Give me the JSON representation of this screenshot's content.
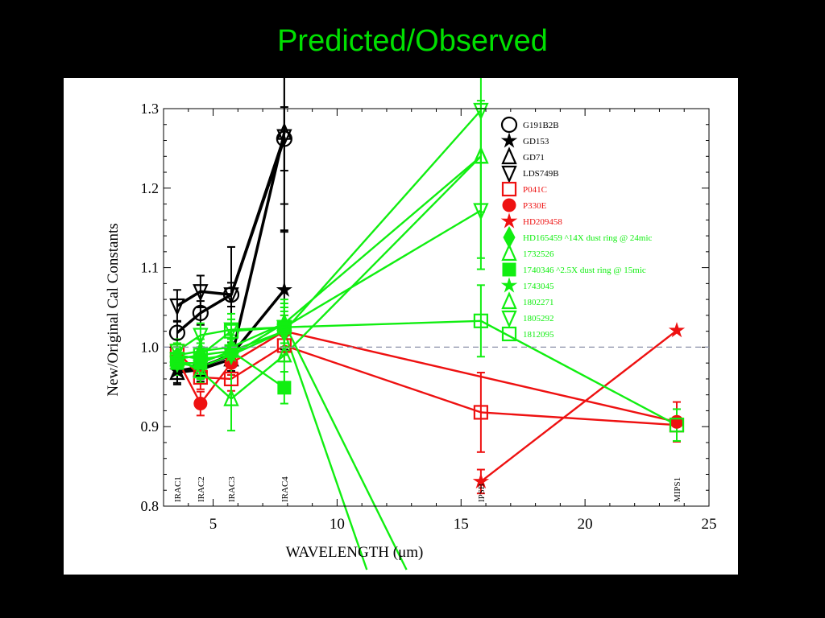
{
  "slide": {
    "title": "Predicted/Observed"
  },
  "colors": {
    "background": "#000000",
    "title": "#00e000",
    "plot_bg": "#ffffff",
    "black": "#000000",
    "red": "#ee1111",
    "green": "#11ee11",
    "reference_line": "#8a8fa8"
  },
  "chart_data": {
    "type": "line",
    "title": "",
    "xlabel": "WAVELENGTH (μm)",
    "ylabel": "New/Original Cal Constants",
    "xlim": [
      3,
      25
    ],
    "ylim": [
      0.8,
      1.3
    ],
    "x_ticks": [
      "5",
      "10",
      "15",
      "20",
      "25"
    ],
    "y_ticks": [
      "0.8",
      "0.9",
      "1.0",
      "1.1",
      "1.2",
      "1.3"
    ],
    "reference_line": 1.0,
    "band_labels": [
      {
        "label": "IRAC1",
        "x": 3.55
      },
      {
        "label": "IRAC2",
        "x": 4.49
      },
      {
        "label": "IRAC3",
        "x": 5.73
      },
      {
        "label": "IRAC4",
        "x": 7.87
      },
      {
        "label": "IPSB",
        "x": 15.8
      },
      {
        "label": "MIPS1",
        "x": 23.7
      }
    ],
    "legend_position": "top-right",
    "series": [
      {
        "name": "G191B2B",
        "color": "#000000",
        "marker": "circle-open",
        "thick": true,
        "points": [
          [
            3.55,
            1.018,
            0.015
          ],
          [
            4.49,
            1.043,
            0.015
          ],
          [
            5.73,
            1.066,
            0.015
          ],
          [
            7.87,
            1.262,
            0.04
          ]
        ]
      },
      {
        "name": "GD153",
        "color": "#000000",
        "marker": "star",
        "thick": true,
        "points": [
          [
            3.55,
            0.97,
            0.015
          ],
          [
            4.49,
            0.975,
            0.015
          ],
          [
            5.73,
            0.99,
            0.02
          ],
          [
            7.87,
            1.072,
            0.075
          ]
        ]
      },
      {
        "name": "GD71",
        "color": "#000000",
        "marker": "triangle-up-open",
        "thick": true,
        "points": [
          [
            3.55,
            0.968,
            0.015
          ],
          [
            4.49,
            0.972,
            0.015
          ],
          [
            5.73,
            0.985,
            0.02
          ],
          [
            7.87,
            1.27,
            0.09
          ]
        ]
      },
      {
        "name": "LDS749B",
        "color": "#000000",
        "marker": "triangle-down-open",
        "thick": true,
        "points": [
          [
            3.55,
            1.052,
            0.02
          ],
          [
            4.49,
            1.07,
            0.02
          ],
          [
            5.73,
            1.066,
            0.06
          ],
          [
            7.87,
            1.265,
            0.12
          ]
        ]
      },
      {
        "name": "P041C",
        "color": "#ee1111",
        "marker": "square-open",
        "thick": false,
        "points": [
          [
            3.55,
            0.995,
            0.015
          ],
          [
            4.49,
            0.962,
            0.015
          ],
          [
            5.73,
            0.96,
            0.015
          ],
          [
            7.87,
            1.002,
            0.02
          ],
          [
            15.8,
            0.918,
            0.05
          ],
          [
            23.7,
            0.902,
            0.02
          ]
        ]
      },
      {
        "name": "P330E",
        "color": "#ee1111",
        "marker": "circle-filled",
        "thick": false,
        "points": [
          [
            3.55,
            0.985,
            0.015
          ],
          [
            4.49,
            0.929,
            0.015
          ],
          [
            5.73,
            0.98,
            0.015
          ],
          [
            7.87,
            1.02,
            0.02
          ],
          [
            23.7,
            0.906,
            0.025
          ]
        ]
      },
      {
        "name": "HD209458",
        "color": "#ee1111",
        "marker": "star",
        "thick": false,
        "points": [
          [
            15.8,
            0.831,
            0.015
          ],
          [
            23.7,
            1.021,
            0.0
          ]
        ]
      },
      {
        "name": "HD165459 ^14X dust ring @ 24mic",
        "color": "#11ee11",
        "marker": "diamond-filled",
        "thick": false,
        "points": [
          [
            3.55,
            0.985,
            0.015
          ],
          [
            4.49,
            0.99,
            0.015
          ],
          [
            5.73,
            0.995,
            0.015
          ],
          [
            7.87,
            1.02,
            0.03
          ],
          [
            11.2,
            0.72,
            0.0
          ]
        ]
      },
      {
        "name": "1732526",
        "color": "#11ee11",
        "marker": "triangle-up-open",
        "thick": false,
        "points": [
          [
            3.55,
            0.985,
            0.015
          ],
          [
            4.49,
            0.97,
            0.015
          ],
          [
            5.73,
            0.935,
            0.04
          ],
          [
            7.87,
            0.99,
            0.04
          ],
          [
            15.8,
            1.24,
            0.07
          ]
        ]
      },
      {
        "name": "1740346 ^2.5X dust ring @ 15mic",
        "color": "#11ee11",
        "marker": "square-filled",
        "thick": false,
        "points": [
          [
            3.55,
            0.98,
            0.015
          ],
          [
            4.49,
            0.98,
            0.015
          ],
          [
            5.73,
            0.995,
            0.015
          ],
          [
            7.87,
            0.949,
            0.02
          ]
        ]
      },
      {
        "name": "1743045",
        "color": "#11ee11",
        "marker": "star",
        "thick": false,
        "points": [
          [
            3.55,
            0.99,
            0.015
          ],
          [
            4.49,
            0.985,
            0.015
          ],
          [
            5.73,
            0.99,
            0.015
          ],
          [
            7.87,
            1.03,
            0.025
          ],
          [
            12.8,
            0.72,
            0.0
          ]
        ]
      },
      {
        "name": "1802271",
        "color": "#11ee11",
        "marker": "triangle-up-open",
        "thick": false,
        "points": [
          [
            3.55,
            0.99,
            0.015
          ],
          [
            4.49,
            0.995,
            0.015
          ],
          [
            5.73,
            1.0,
            0.015
          ],
          [
            7.87,
            1.03,
            0.03
          ],
          [
            15.8,
            1.24,
            0.06
          ]
        ]
      },
      {
        "name": "1805292",
        "color": "#11ee11",
        "marker": "triangle-down-open",
        "thick": false,
        "points": [
          [
            3.55,
            0.995,
            0.015
          ],
          [
            4.49,
            1.015,
            0.015
          ],
          [
            5.73,
            1.022,
            0.02
          ],
          [
            7.87,
            1.025,
            0.025
          ],
          [
            15.8,
            1.172,
            0.06
          ]
        ]
      },
      {
        "name": "1812095",
        "color": "#11ee11",
        "marker": "square-open",
        "thick": false,
        "points": [
          [
            3.55,
            0.985,
            0.015
          ],
          [
            4.49,
            0.99,
            0.015
          ],
          [
            5.73,
            1.02,
            0.015
          ],
          [
            7.87,
            1.025,
            0.02
          ],
          [
            15.8,
            1.033,
            0.045
          ],
          [
            23.7,
            0.902,
            0.02
          ]
        ]
      },
      {
        "name": "",
        "color": "#11ee11",
        "marker": "triangle-down-open",
        "thick": false,
        "legend": false,
        "points": [
          [
            3.55,
            0.98,
            0.015
          ],
          [
            4.49,
            0.975,
            0.015
          ],
          [
            5.73,
            0.99,
            0.015
          ],
          [
            7.87,
            1.02,
            0.02
          ],
          [
            15.8,
            1.298,
            0.2
          ]
        ]
      }
    ]
  }
}
